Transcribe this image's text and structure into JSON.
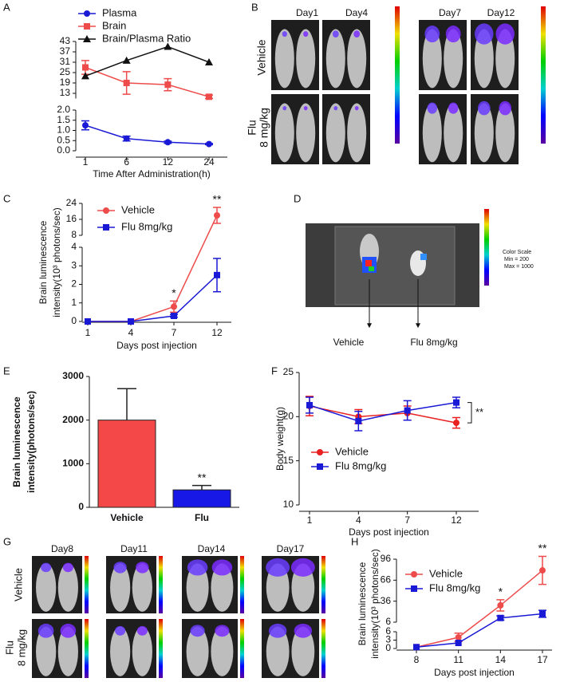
{
  "panel_labels": [
    "A",
    "B",
    "C",
    "D",
    "E",
    "F",
    "G",
    "H"
  ],
  "image_panels": {
    "B": {
      "columns": [
        "Day1",
        "Day4",
        "Day7",
        "Day12"
      ],
      "rows": [
        [
          "Vehicle"
        ],
        [
          "Flu",
          "8 mg/kg"
        ]
      ]
    },
    "D": {
      "labels": [
        "Vehicle",
        "Flu 8mg/kg"
      ],
      "color_scale": [
        "Color Scale",
        "Min = 200",
        "Max = 1000"
      ]
    },
    "G": {
      "columns": [
        "Day8",
        "Day11",
        "Day14",
        "Day17"
      ],
      "rows": [
        [
          "Vehicle"
        ],
        [
          "Flu",
          "8 mg/kg"
        ]
      ]
    }
  },
  "chart_data": [
    {
      "type": "line",
      "xlabel": "Time After Administration(h)",
      "categories": [
        1,
        6,
        12,
        24
      ],
      "segments": [
        {
          "ylim": [
            0,
            2
          ],
          "yticks": [
            {
              "value": 0,
              "label": "0.0"
            },
            0.5,
            {
              "value": 1,
              "label": "1.0"
            },
            1.5,
            {
              "value": 2,
              "label": "2.0"
            }
          ]
        },
        {
          "ylim": [
            10,
            43
          ],
          "yticks": [
            13,
            19,
            25,
            31,
            37,
            43
          ]
        }
      ],
      "series": [
        {
          "name": "Plasma",
          "color": "#1a1ad6",
          "marker": "circle",
          "values": [
            1.25,
            0.6,
            0.42,
            0.33
          ],
          "errors": [
            0.22,
            0.12,
            0.05,
            0.03
          ]
        },
        {
          "name": "Brain",
          "color": "#ee4b4b",
          "marker": "square",
          "values": [
            28,
            19,
            18,
            11
          ],
          "errors": [
            4,
            6.5,
            3.5,
            1
          ]
        },
        {
          "name": "Brain/Plasma Ratio",
          "color": "#111111",
          "marker": "triangle",
          "values": [
            23,
            32,
            40,
            31
          ],
          "errors": [
            null,
            null,
            null,
            null
          ]
        }
      ]
    },
    {
      "type": "line",
      "xlabel": "Days post injection",
      "ylabel": [
        "Brain luminescence",
        "intensity(10³ photons/sec)"
      ],
      "categories": [
        1,
        4,
        7,
        12
      ],
      "segments": [
        {
          "ylim": [
            0,
            4
          ],
          "yticks": [
            0,
            1,
            2,
            3,
            4
          ]
        },
        {
          "ylim": [
            8,
            24
          ],
          "yticks": [
            8,
            16,
            24
          ]
        }
      ],
      "series": [
        {
          "name": "Vehicle",
          "color": "#ee4b4b",
          "marker": "circle",
          "values": [
            0,
            0,
            0.8,
            18
          ],
          "errors": [
            null,
            null,
            0.3,
            4
          ]
        },
        {
          "name": "Flu 8mg/kg",
          "color": "#1a1ad6",
          "marker": "square",
          "values": [
            0,
            0,
            0.3,
            2.5
          ],
          "errors": [
            null,
            null,
            0.07,
            0.9
          ]
        }
      ],
      "annotations": [
        {
          "text": "*",
          "x": 7
        },
        {
          "text": "**",
          "x": 12
        }
      ]
    },
    {
      "type": "bar",
      "ylabel": [
        "Brain luminescence",
        "intensity(photons/sec)"
      ],
      "categories": [
        "Vehicle",
        "Flu"
      ],
      "values": [
        2000,
        400
      ],
      "errors": [
        720,
        100
      ],
      "colors": [
        "#f44848",
        "#1818e6"
      ],
      "ylim": [
        0,
        3000
      ],
      "yticks": [
        0,
        1000,
        2000,
        3000
      ],
      "annotations": [
        {
          "text": "**",
          "x": "Flu"
        }
      ]
    },
    {
      "type": "line",
      "xlabel": "Days post injection",
      "ylabel": "Body weight(g)",
      "categories": [
        1,
        4,
        7,
        12
      ],
      "ylim": [
        10,
        25
      ],
      "yticks": [
        10,
        15,
        20,
        25
      ],
      "series": [
        {
          "name": "Vehicle",
          "color": "#e82020",
          "marker": "circle",
          "values": [
            21.2,
            20,
            20.4,
            19.3
          ],
          "errors": [
            1.1,
            0.8,
            0.8,
            0.6
          ]
        },
        {
          "name": "Flu 8mg/kg",
          "color": "#1a1ad6",
          "marker": "square",
          "values": [
            21.3,
            19.5,
            20.7,
            21.6
          ],
          "errors": [
            0.9,
            1.1,
            1.1,
            0.6
          ]
        }
      ],
      "annotations": [
        {
          "text": "**",
          "x": 12,
          "bracket": true
        }
      ]
    },
    {
      "type": "line",
      "xlabel": "Days post injection",
      "ylabel": [
        "Brain luminescence",
        "intensity(10³ photons/sec)"
      ],
      "categories": [
        8,
        11,
        14,
        17
      ],
      "segments": [
        {
          "ylim": [
            0,
            6
          ],
          "yticks": [
            0,
            3,
            6
          ]
        },
        {
          "ylim": [
            6,
            96
          ],
          "yticks": [
            6,
            36,
            66,
            96
          ]
        }
      ],
      "series": [
        {
          "name": "Vehicle",
          "color": "#ee4b4b",
          "marker": "circle",
          "values": [
            0.5,
            4,
            30,
            80
          ],
          "errors": [
            null,
            1.5,
            8,
            20
          ]
        },
        {
          "name": "Flu 8mg/kg",
          "color": "#1a1ad6",
          "marker": "square",
          "values": [
            0.5,
            2,
            12,
            18
          ],
          "errors": [
            null,
            null,
            3,
            5
          ]
        }
      ],
      "annotations": [
        {
          "text": "*",
          "x": 14
        },
        {
          "text": "**",
          "x": 17
        }
      ]
    }
  ]
}
